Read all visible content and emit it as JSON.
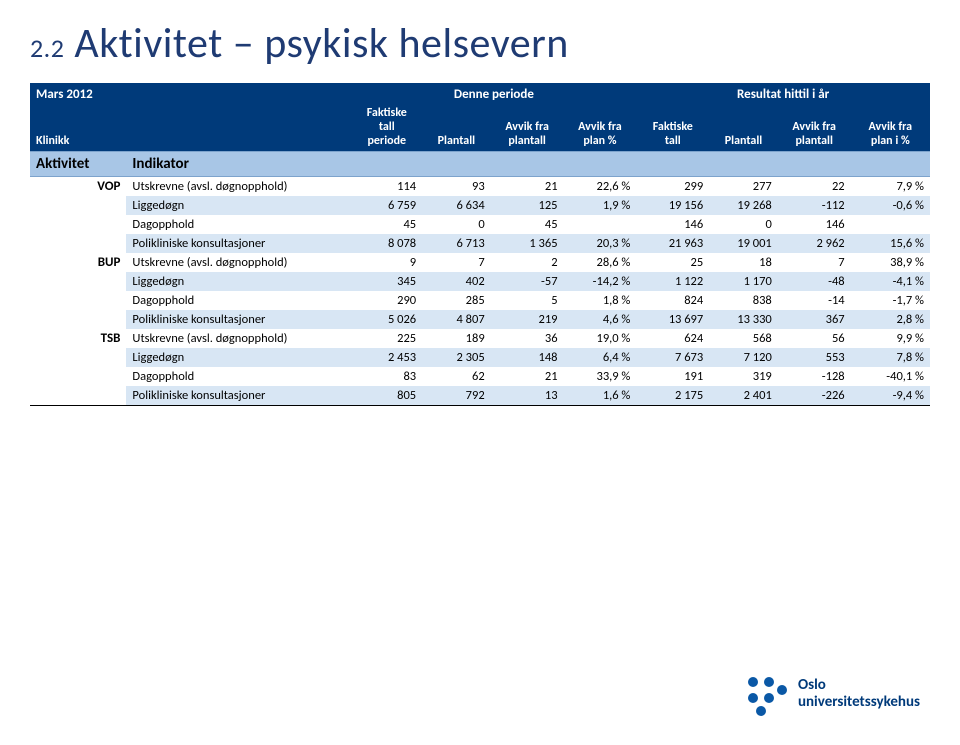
{
  "title_num": "2.2",
  "title_text": "Aktivitet – psykisk helsevern",
  "header": {
    "period_label": "Mars 2012",
    "group_denne": "Denne periode",
    "group_resultat": "Resultat hittil i år",
    "klinikk": "Klinikk",
    "col_faktiske_periode": "Faktiske\ntall\nperiode",
    "col_plantall": "Plantall",
    "col_avvik_plantall": "Avvik fra\nplantall",
    "col_avvik_plan_pct": "Avvik fra\nplan %",
    "col_faktiske_tall": "Faktiske\ntall",
    "col_plantall2": "Plantall",
    "col_avvik_plantall2": "Avvik fra\nplantall",
    "col_avvik_plan_pct2": "Avvik fra\nplan i %"
  },
  "catrow": {
    "aktivitet": "Aktivitet",
    "indikator": "Indikator"
  },
  "indicators": {
    "utskrevne": "Utskrevne (avsl. døgnopphold)",
    "liggedogn": "Liggedøgn",
    "dagopphold": "Dagopphold",
    "poliklin": "Polikliniske konsultasjoner"
  },
  "groups": [
    {
      "name": "VOP",
      "rows": [
        {
          "ind": "utskrevne",
          "vals": [
            "114",
            "93",
            "21",
            "22,6 %",
            "299",
            "277",
            "22",
            "7,9 %"
          ]
        },
        {
          "ind": "liggedogn",
          "vals": [
            "6 759",
            "6 634",
            "125",
            "1,9 %",
            "19 156",
            "19 268",
            "-112",
            "-0,6 %"
          ],
          "shade": true
        },
        {
          "ind": "dagopphold",
          "vals": [
            "45",
            "0",
            "45",
            "",
            "146",
            "0",
            "146",
            ""
          ]
        },
        {
          "ind": "poliklin",
          "vals": [
            "8 078",
            "6 713",
            "1 365",
            "20,3 %",
            "21 963",
            "19 001",
            "2 962",
            "15,6 %"
          ],
          "shade": true
        }
      ]
    },
    {
      "name": "BUP",
      "rows": [
        {
          "ind": "utskrevne",
          "vals": [
            "9",
            "7",
            "2",
            "28,6 %",
            "25",
            "18",
            "7",
            "38,9 %"
          ]
        },
        {
          "ind": "liggedogn",
          "vals": [
            "345",
            "402",
            "-57",
            "-14,2 %",
            "1 122",
            "1 170",
            "-48",
            "-4,1 %"
          ],
          "shade": true
        },
        {
          "ind": "dagopphold",
          "vals": [
            "290",
            "285",
            "5",
            "1,8 %",
            "824",
            "838",
            "-14",
            "-1,7 %"
          ]
        },
        {
          "ind": "poliklin",
          "vals": [
            "5 026",
            "4 807",
            "219",
            "4,6 %",
            "13 697",
            "13 330",
            "367",
            "2,8 %"
          ],
          "shade": true
        }
      ]
    },
    {
      "name": "TSB",
      "rows": [
        {
          "ind": "utskrevne",
          "vals": [
            "225",
            "189",
            "36",
            "19,0 %",
            "624",
            "568",
            "56",
            "9,9 %"
          ]
        },
        {
          "ind": "liggedogn",
          "vals": [
            "2 453",
            "2 305",
            "148",
            "6,4 %",
            "7 673",
            "7 120",
            "553",
            "7,8 %"
          ],
          "shade": true
        },
        {
          "ind": "dagopphold",
          "vals": [
            "83",
            "62",
            "21",
            "33,9 %",
            "191",
            "319",
            "-128",
            "-40,1 %"
          ]
        },
        {
          "ind": "poliklin",
          "vals": [
            "805",
            "792",
            "13",
            "1,6 %",
            "2 175",
            "2 401",
            "-226",
            "-9,4 %"
          ],
          "shade": true
        }
      ]
    }
  ],
  "logo": {
    "line1": "Oslo",
    "line2": "universitetssykehus"
  },
  "style": {
    "header_bg": "#003a7a",
    "catrow_bg": "#a8c6e6",
    "shade_bg": "#d8e6f4",
    "title_color": "#1f3b73"
  }
}
